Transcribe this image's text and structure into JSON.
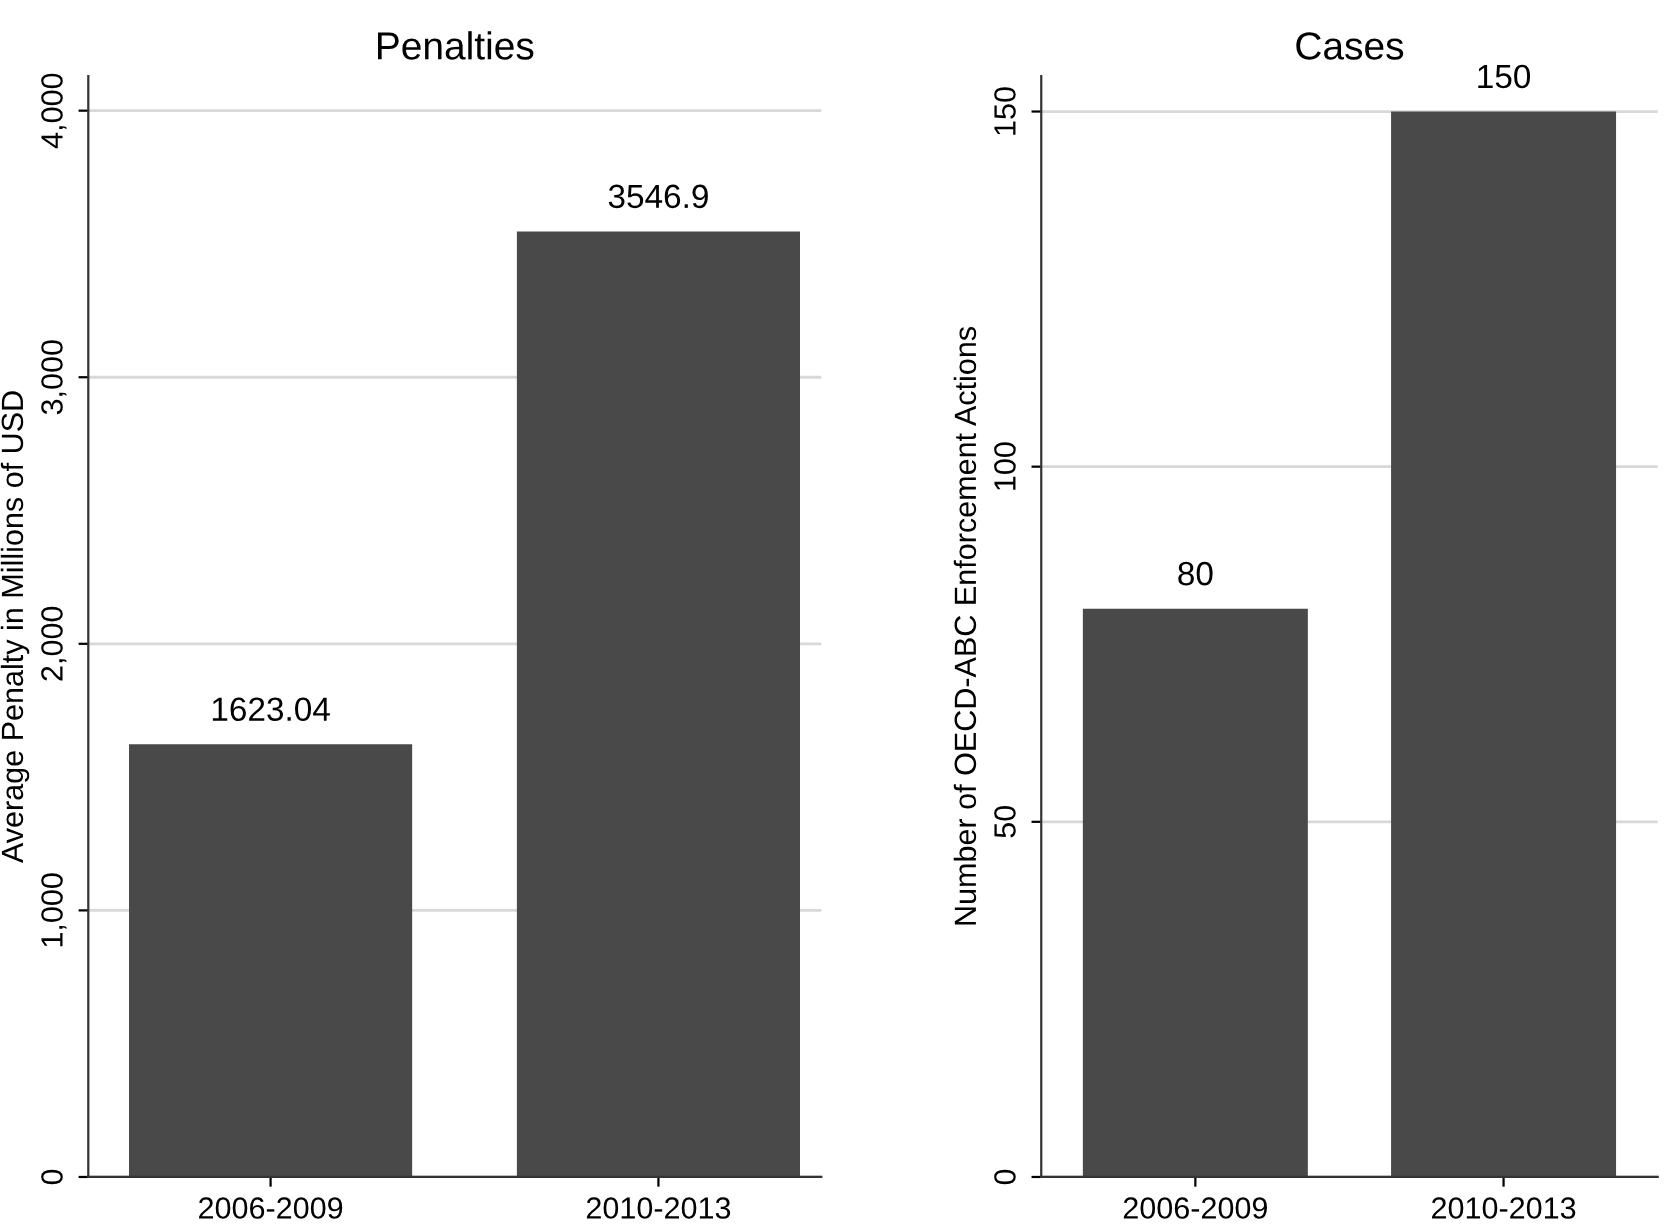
{
  "chart_data": [
    {
      "type": "bar",
      "title": "Penalties",
      "ylabel": "Average Penalty in Millions of USD",
      "categories": [
        "2006-2009",
        "2010-2013"
      ],
      "values": [
        1623.04,
        3546.9
      ],
      "color": "#494949",
      "ylim": [
        0,
        4130
      ],
      "yticks": [
        0,
        {
          "value": 1000,
          "label": "1,000"
        },
        {
          "value": 2000,
          "label": "2,000"
        },
        {
          "value": 3000,
          "label": "3,000"
        },
        {
          "value": 4000,
          "label": "4,000"
        }
      ],
      "grid": "y",
      "data_labels": true
    },
    {
      "type": "bar",
      "title": "Cases",
      "ylabel": "Number of OECD-ABC Enforcement Actions",
      "categories": [
        "2006-2009",
        "2010-2013"
      ],
      "values": [
        80,
        150
      ],
      "color": "#494949",
      "ylim": [
        0,
        155
      ],
      "yticks": [
        0,
        50,
        100,
        150
      ],
      "grid": "y",
      "data_labels": true
    }
  ]
}
